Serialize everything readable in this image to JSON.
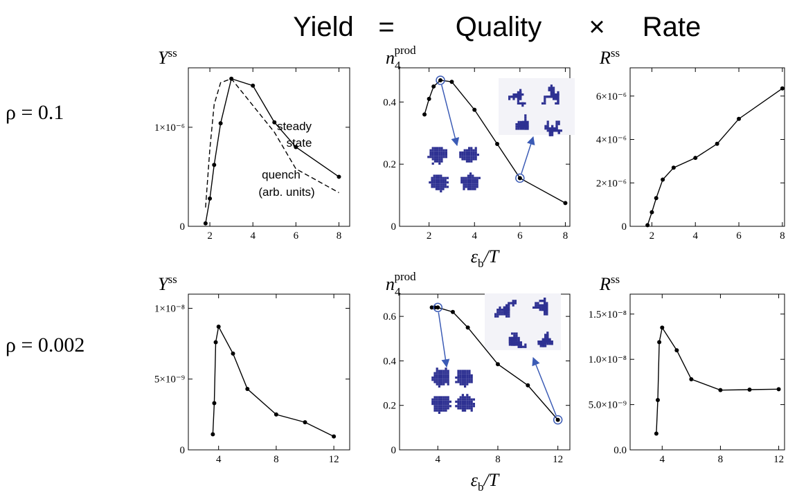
{
  "header": {
    "parts": [
      "Yield",
      "=",
      "Quality",
      "×",
      "Rate"
    ]
  },
  "row_labels": [
    "ρ = 0.1",
    "ρ = 0.002"
  ],
  "chart_data": [
    {
      "type": "line",
      "ylabel": {
        "base": "Y",
        "sup": "ss"
      },
      "x": [
        1.8,
        2.0,
        2.2,
        2.5,
        3,
        4,
        5,
        6,
        8
      ],
      "series": [
        {
          "color": "#000000",
          "markers": true,
          "values": [
            3e-08,
            2.8e-07,
            6.2e-07,
            1.04e-06,
            1.49e-06,
            1.42e-06,
            1.05e-06,
            8e-07,
            5e-07
          ]
        },
        {
          "color": "#000000",
          "dashed": true,
          "x": [
            1.8,
            2.0,
            2.2,
            2.5,
            3,
            5,
            6,
            8
          ],
          "values": [
            1.9e-07,
            7.8e-07,
            1.23e-06,
            1.45e-06,
            1.49e-06,
            9.5e-07,
            5.8e-07,
            3.4e-07
          ]
        }
      ],
      "annotations": [
        "steady",
        "state",
        "quench",
        "(arb. units)"
      ],
      "xlim": [
        1,
        8.5
      ],
      "ylim": [
        0,
        1.6e-06
      ],
      "xticks": [
        2,
        4,
        6,
        8
      ],
      "yticks": [
        0,
        {
          "value": 1e-06,
          "label": "1×10⁻⁶"
        }
      ]
    },
    {
      "type": "line",
      "ylabel": {
        "base": "n",
        "sub": "4",
        "sup": "prod"
      },
      "xlabel": {
        "base": "ε",
        "sub": "b",
        "rest": "/T"
      },
      "x": [
        1.8,
        2.0,
        2.2,
        2.5,
        3,
        4,
        5,
        6,
        8
      ],
      "series": [
        {
          "color": "#000000",
          "markers": true,
          "circled": [
            3,
            7
          ],
          "values": [
            0.36,
            0.41,
            0.45,
            0.47,
            0.465,
            0.375,
            0.265,
            0.155,
            0.075
          ]
        }
      ],
      "xlim": [
        0.7,
        8.2
      ],
      "ylim": [
        0,
        0.51
      ],
      "xticks": [
        2,
        4,
        6,
        8
      ],
      "yticks": [
        0,
        0.2,
        0.4
      ]
    },
    {
      "type": "line",
      "ylabel": {
        "base": "R",
        "sup": "ss"
      },
      "x": [
        1.8,
        2.0,
        2.2,
        2.5,
        3,
        4,
        5,
        6,
        8
      ],
      "series": [
        {
          "color": "#000000",
          "markers": true,
          "values": [
            5e-08,
            6.5e-07,
            1.3e-06,
            2.15e-06,
            2.7e-06,
            3.15e-06,
            3.8e-06,
            4.95e-06,
            6.35e-06
          ]
        }
      ],
      "xlim": [
        1,
        8.1
      ],
      "ylim": [
        0,
        7.3e-06
      ],
      "xticks": [
        2,
        4,
        6,
        8
      ],
      "yticks": [
        0,
        {
          "value": 2e-06,
          "label": "2×10⁻⁶"
        },
        {
          "value": 4e-06,
          "label": "4×10⁻⁶"
        },
        {
          "value": 6e-06,
          "label": "6×10⁻⁶"
        }
      ]
    },
    {
      "type": "line",
      "ylabel": {
        "base": "Y",
        "sup": "ss"
      },
      "x": [
        3.6,
        3.7,
        3.8,
        4,
        5,
        6,
        8,
        10,
        12
      ],
      "series": [
        {
          "color": "#000000",
          "markers": true,
          "values": [
            1.1e-09,
            3.3e-09,
            7.6e-09,
            8.7e-09,
            6.8e-09,
            4.3e-09,
            2.5e-09,
            1.95e-09,
            9.5e-10
          ]
        }
      ],
      "xlim": [
        1.9,
        13.1
      ],
      "ylim": [
        0,
        1.1e-08
      ],
      "xticks": [
        4,
        8,
        12
      ],
      "yticks": [
        0,
        {
          "value": 5e-09,
          "label": "5×10⁻⁹"
        },
        {
          "value": 1e-08,
          "label": "1×10⁻⁸"
        }
      ]
    },
    {
      "type": "line",
      "ylabel": {
        "base": "n",
        "sub": "4",
        "sup": "prod"
      },
      "xlabel": {
        "base": "ε",
        "sub": "b",
        "rest": "/T"
      },
      "x": [
        3.6,
        3.8,
        4,
        5,
        6,
        8,
        10,
        12
      ],
      "series": [
        {
          "color": "#000000",
          "markers": true,
          "circled": [
            2,
            7
          ],
          "values": [
            0.64,
            0.64,
            0.64,
            0.62,
            0.55,
            0.385,
            0.29,
            0.135
          ]
        }
      ],
      "xlim": [
        1.45,
        12.8
      ],
      "ylim": [
        0,
        0.7
      ],
      "xticks": [
        4,
        8,
        12
      ],
      "yticks": [
        0,
        0.2,
        0.4,
        0.6
      ]
    },
    {
      "type": "line",
      "ylabel": {
        "base": "R",
        "sup": "ss"
      },
      "x": [
        3.6,
        3.7,
        3.8,
        4,
        5,
        6,
        8,
        10,
        12
      ],
      "series": [
        {
          "color": "#000000",
          "markers": true,
          "values": [
            1.8e-09,
            5.5e-09,
            1.19e-08,
            1.35e-08,
            1.1e-08,
            7.8e-09,
            6.6e-09,
            6.65e-09,
            6.7e-09
          ]
        }
      ],
      "xlim": [
        1.8,
        12.4
      ],
      "ylim": [
        0,
        1.72e-08
      ],
      "xticks": [
        4,
        8,
        12
      ],
      "yticks": [
        {
          "value": 0,
          "label": "0.0"
        },
        {
          "value": 5e-09,
          "label": "5.0×10⁻⁹"
        },
        {
          "value": 1e-08,
          "label": "1.0×10⁻⁸"
        },
        {
          "value": 1.5e-08,
          "label": "1.5×10⁻⁸"
        }
      ]
    }
  ]
}
